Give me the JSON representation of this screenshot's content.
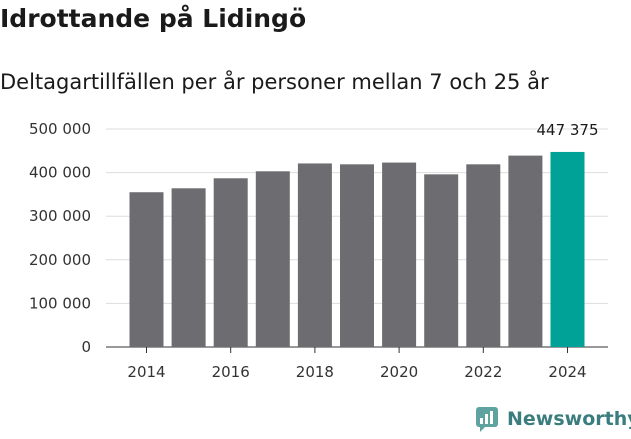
{
  "header": {
    "title": "Idrottande på Lidingö",
    "subtitle": "Deltagartillfällen per år personer mellan 7 och 25 år"
  },
  "chart_data": {
    "type": "bar",
    "title": "Idrottande på Lidingö",
    "subtitle": "Deltagartillfällen per år personer mellan 7 och 25 år",
    "categories": [
      "2014",
      "2015",
      "2016",
      "2017",
      "2018",
      "2019",
      "2020",
      "2021",
      "2022",
      "2023",
      "2024"
    ],
    "values": [
      355000,
      364000,
      387000,
      403000,
      421000,
      419000,
      423000,
      396000,
      419000,
      439000,
      447375
    ],
    "x_tick_labels": [
      "2014",
      "2016",
      "2018",
      "2020",
      "2022",
      "2024"
    ],
    "y_ticks": [
      0,
      100000,
      200000,
      300000,
      400000,
      500000
    ],
    "y_tick_labels": [
      "0",
      "100 000",
      "200 000",
      "300 000",
      "400 000",
      "500 000"
    ],
    "ylim": [
      0,
      500000
    ],
    "grid": true,
    "highlight_index": 10,
    "highlight_label": "447 375",
    "colors": {
      "bar": "#6d6c70",
      "highlight": "#00a196",
      "grid": "#dddddd",
      "axis": "#333333"
    },
    "xlabel": "",
    "ylabel": ""
  },
  "brand": {
    "name": "Newsworthy",
    "icon": "newsworthy-logo-icon",
    "color": "#3b7d7e"
  }
}
